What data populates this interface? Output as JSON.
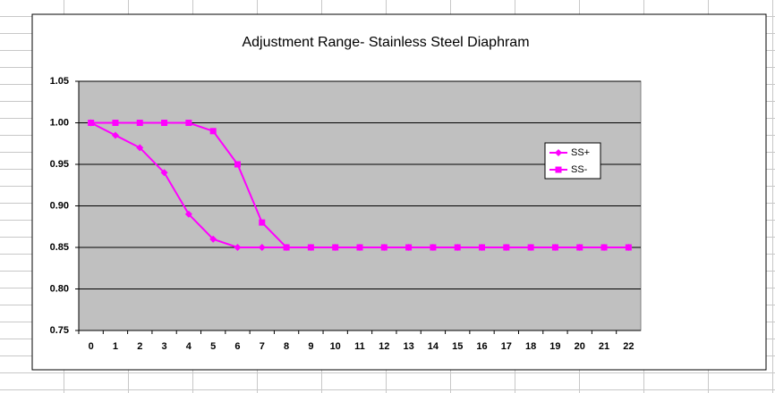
{
  "chart_data": {
    "type": "line",
    "title": "Adjustment Range- Stainless Steel Diaphram",
    "categories": [
      "0",
      "1",
      "2",
      "3",
      "4",
      "5",
      "6",
      "7",
      "8",
      "9",
      "10",
      "11",
      "12",
      "13",
      "14",
      "15",
      "16",
      "17",
      "18",
      "19",
      "20",
      "21",
      "22"
    ],
    "series": [
      {
        "name": "SS+",
        "color": "#ff00ff",
        "marker": "diamond",
        "values": [
          1.0,
          0.985,
          0.97,
          0.94,
          0.89,
          0.86,
          0.85,
          0.85,
          0.85,
          0.85,
          0.85,
          0.85,
          0.85,
          0.85,
          0.85,
          0.85,
          0.85,
          0.85,
          0.85,
          0.85,
          0.85,
          0.85,
          0.85
        ]
      },
      {
        "name": "SS-",
        "color": "#ff00ff",
        "marker": "square",
        "values": [
          1.0,
          1.0,
          1.0,
          1.0,
          1.0,
          0.99,
          0.95,
          0.88,
          0.85,
          0.85,
          0.85,
          0.85,
          0.85,
          0.85,
          0.85,
          0.85,
          0.85,
          0.85,
          0.85,
          0.85,
          0.85,
          0.85,
          0.85
        ]
      }
    ],
    "ylim": [
      0.75,
      1.05
    ],
    "yticks": [
      0.75,
      {
        "value": 0.8,
        "label": "0.80"
      },
      0.85,
      {
        "value": 0.9,
        "label": "0.90"
      },
      0.95,
      {
        "value": 1.0,
        "label": "1.00"
      },
      1.05
    ],
    "grid": true,
    "legend": "right"
  }
}
